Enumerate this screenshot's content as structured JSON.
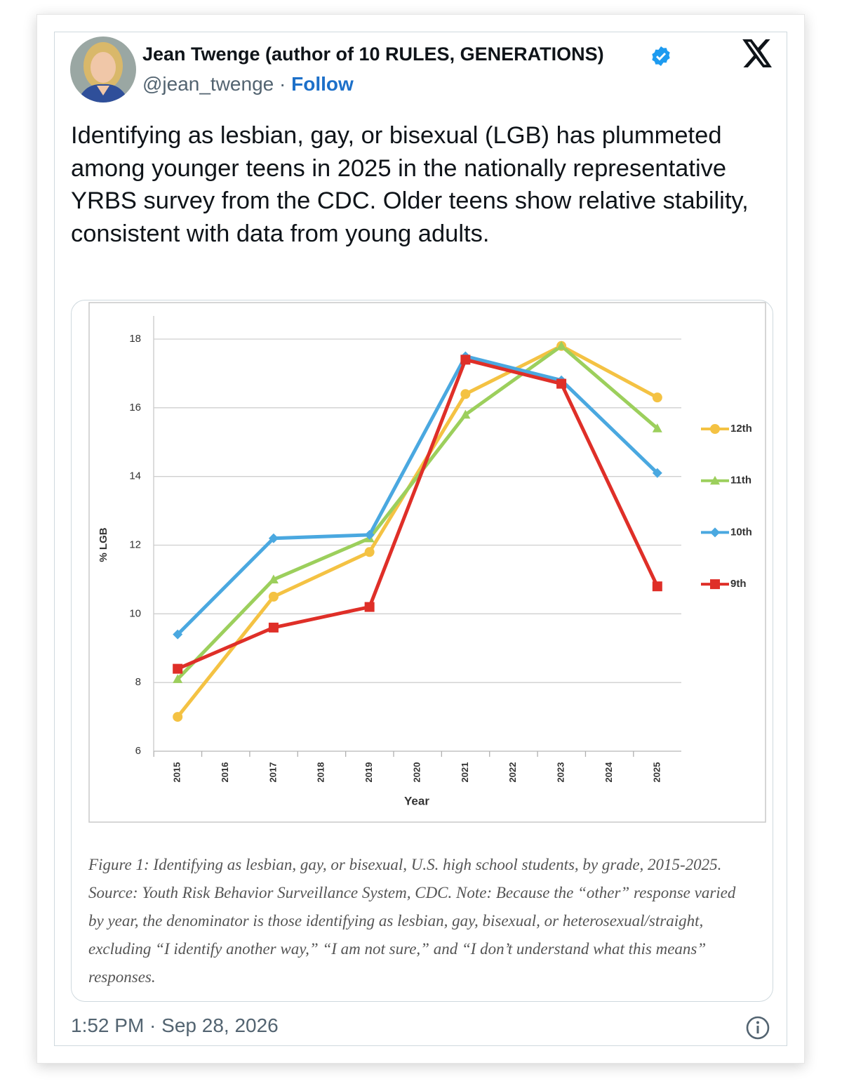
{
  "tweet": {
    "author": {
      "name": "Jean Twenge (author of 10 RULES, GENERATIONS)",
      "handle": "@jean_twenge",
      "separator": "·",
      "follow": "Follow"
    },
    "text": "Identifying as lesbian, gay, or bisexual (LGB) has plummeted among younger teens in 2025 in the nationally representative YRBS survey from the CDC. Older teens show relative stability, consistent with data from young adults.",
    "caption": "Figure 1: Identifying as lesbian, gay, or bisexual, U.S. high school students, by grade, 2015-2025. Source: Youth Risk Behavior Surveillance System, CDC. Note: Because the “other” response varied by year, the denominator is those identifying as lesbian, gay, bisexual, or heterosexual/straight, excluding “I identify another way,” “I am not sure,” and “I don’t understand what this means” responses.",
    "timestamp": "1:52 PM · Sep 28, 2026"
  },
  "chart_data": {
    "type": "line",
    "x_label": "Year",
    "y_label": "% LGB",
    "x": [
      2015,
      2017,
      2019,
      2021,
      2023,
      2025
    ],
    "xlim": [
      2014.5,
      2025.5
    ],
    "xticks": [
      2015,
      2016,
      2017,
      2018,
      2019,
      2020,
      2021,
      2022,
      2023,
      2024,
      2025
    ],
    "ylim": [
      6,
      18
    ],
    "yticks": [
      6,
      8,
      10,
      12,
      14,
      16,
      18
    ],
    "grid": true,
    "legend": "right",
    "series": [
      {
        "name": "12th",
        "color": "#f4c243",
        "marker": "circle",
        "values": [
          7.0,
          10.5,
          11.8,
          16.4,
          17.8,
          16.3
        ]
      },
      {
        "name": "11th",
        "color": "#9ccf5c",
        "marker": "triangle",
        "values": [
          8.1,
          11.0,
          12.2,
          15.8,
          17.8,
          15.4
        ]
      },
      {
        "name": "10th",
        "color": "#4aa8e0",
        "marker": "diamond",
        "values": [
          9.4,
          12.2,
          12.3,
          17.5,
          16.8,
          14.1
        ]
      },
      {
        "name": "9th",
        "color": "#df2f28",
        "marker": "square",
        "values": [
          8.4,
          9.6,
          10.2,
          17.4,
          16.7,
          10.8
        ]
      }
    ]
  }
}
